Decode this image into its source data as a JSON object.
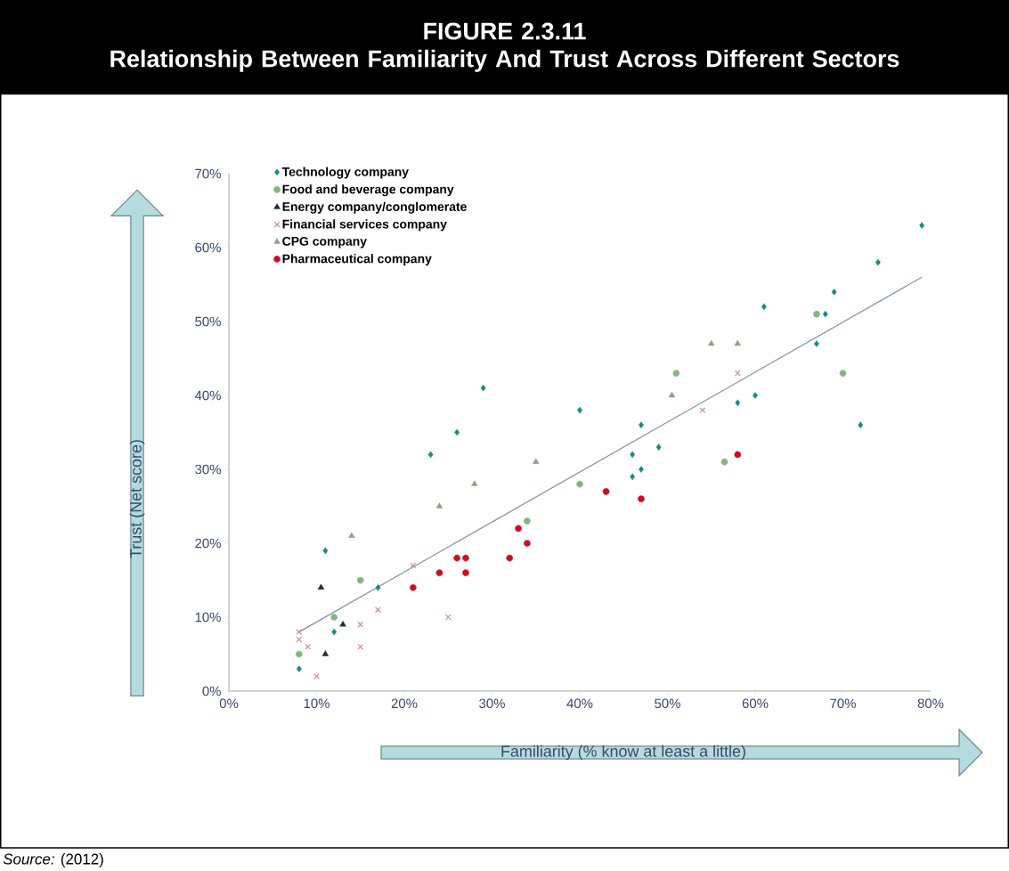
{
  "chart_data": {
    "type": "scatter",
    "title": "FIGURE 2.3.11",
    "subtitle": "Relationship Between Familiarity And Trust Across Different Sectors",
    "xlabel": "Familiarity (% know at least a little)",
    "ylabel": "Trust (Net score)",
    "annotations": [
      "*Source:* (2012)"
    ],
    "xlim": [
      0,
      80
    ],
    "ylim": [
      0,
      70
    ],
    "xticks": [
      {
        "value": 0,
        "label": "0%"
      },
      {
        "value": 10,
        "label": "10%"
      },
      {
        "value": 20,
        "label": "20%"
      },
      {
        "value": 30,
        "label": "30%"
      },
      {
        "value": 40,
        "label": "40%"
      },
      {
        "value": 50,
        "label": "50%"
      },
      {
        "value": 60,
        "label": "60%"
      },
      {
        "value": 70,
        "label": "70%"
      },
      {
        "value": 80,
        "label": "80%"
      }
    ],
    "yticks": [
      {
        "value": 0,
        "label": "0%"
      },
      {
        "value": 10,
        "label": "10%"
      },
      {
        "value": 20,
        "label": "20%"
      },
      {
        "value": 30,
        "label": "30%"
      },
      {
        "value": 40,
        "label": "40%"
      },
      {
        "value": 50,
        "label": "50%"
      },
      {
        "value": 60,
        "label": "60%"
      },
      {
        "value": 70,
        "label": "70%"
      }
    ],
    "legend": "top left",
    "series": [
      {
        "name": "Technology company",
        "color": "#1a8a80",
        "marker": "diamond",
        "x": [
          8,
          11,
          12,
          17,
          23,
          26,
          29,
          40,
          46,
          46,
          47,
          47,
          49,
          58,
          60,
          61,
          67,
          68,
          69,
          72,
          74,
          79
        ],
        "values": [
          3,
          19,
          8,
          14,
          32,
          35,
          41,
          38,
          29,
          32,
          30,
          36,
          33,
          39,
          40,
          52,
          47,
          51,
          54,
          36,
          58,
          63
        ]
      },
      {
        "name": "Food and beverage company",
        "color": "#7fb77e",
        "marker": "circle",
        "x": [
          8,
          12,
          15,
          34,
          40,
          51,
          56.5,
          67,
          70
        ],
        "values": [
          5,
          10,
          15,
          23,
          28,
          43,
          31,
          51,
          43
        ]
      },
      {
        "name": "Energy company/conglomerate",
        "color": "#1a2a3a",
        "marker": "triangle",
        "x": [
          10.5,
          11,
          13
        ],
        "values": [
          14,
          5,
          9
        ]
      },
      {
        "name": "Financial services company",
        "color": "#c9908f",
        "marker": "cross",
        "x": [
          8,
          8,
          9,
          10,
          15,
          15,
          17,
          21,
          25,
          54,
          58
        ],
        "values": [
          8,
          7,
          6,
          2,
          9,
          6,
          11,
          17,
          10,
          38,
          43
        ]
      },
      {
        "name": "CPG company",
        "color": "#9a9a80",
        "marker": "triangle",
        "x": [
          14,
          24,
          28,
          35,
          50.5,
          55,
          58
        ],
        "values": [
          21,
          25,
          28,
          31,
          40,
          47,
          47
        ]
      },
      {
        "name": "Pharmaceutical company",
        "color": "#cc1020",
        "marker": "circle",
        "x": [
          21,
          24,
          26,
          27,
          27,
          32,
          33,
          34,
          43,
          47,
          58
        ],
        "values": [
          14,
          16,
          18,
          18,
          16,
          18,
          22,
          20,
          27,
          26,
          32
        ]
      },
      {
        "type": "line",
        "color": "#8090b0",
        "marker": "none",
        "x": [
          8,
          79
        ],
        "values": [
          8,
          56
        ]
      }
    ]
  }
}
